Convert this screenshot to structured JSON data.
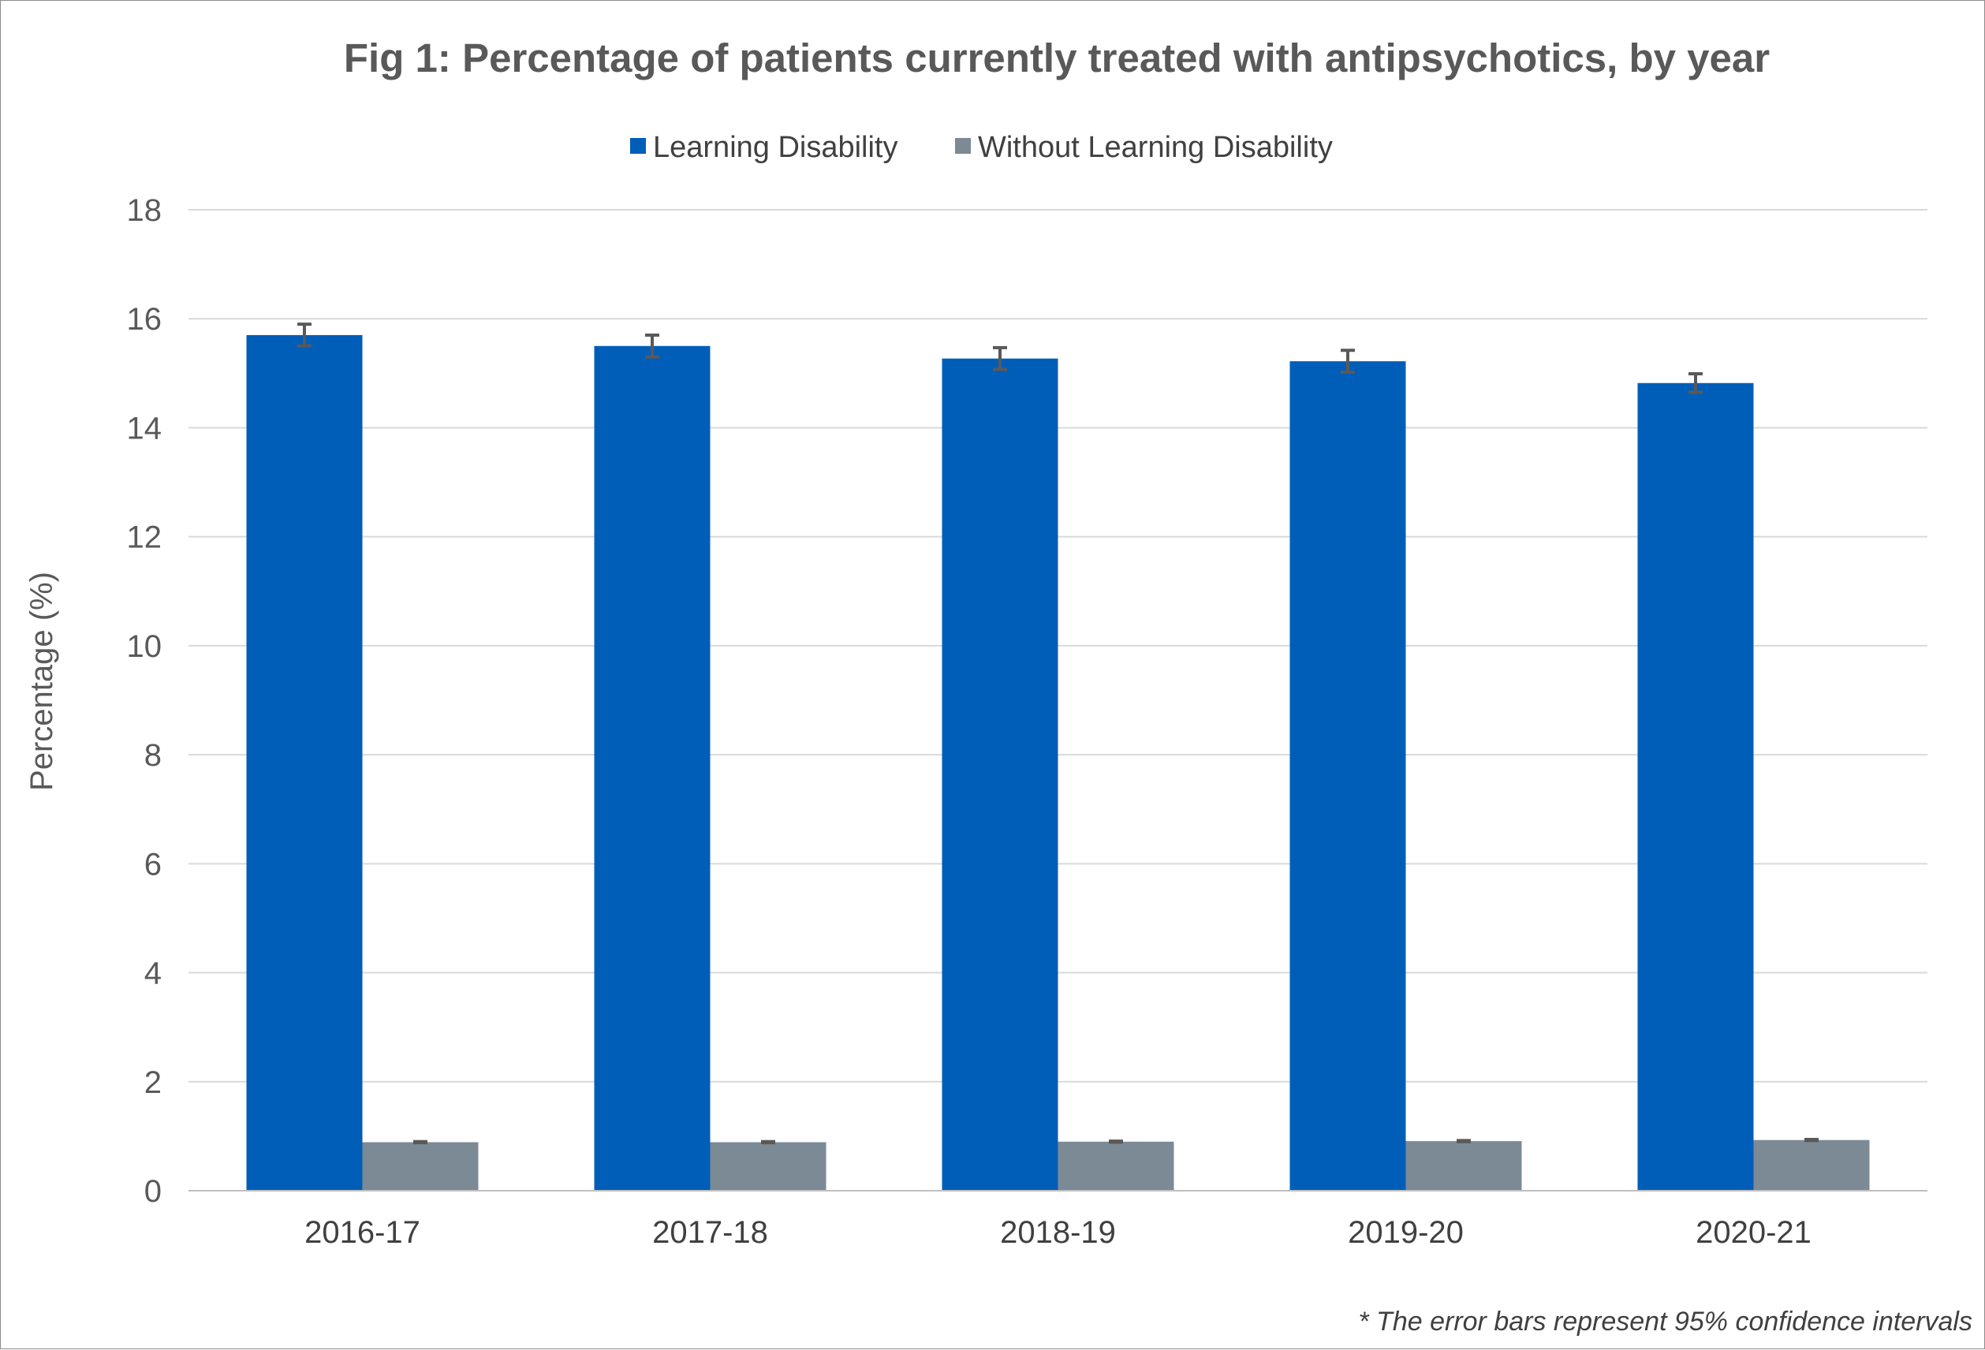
{
  "chart_data": {
    "type": "bar",
    "title": "Fig 1: Percentage of patients currently treated with antipsychotics, by year",
    "xlabel": "",
    "ylabel": "Percentage (%)",
    "ylim": [
      0,
      18
    ],
    "yticks": [
      0,
      2,
      4,
      6,
      8,
      10,
      12,
      14,
      16,
      18
    ],
    "grid": true,
    "legend_position": "top",
    "categories": [
      "2016-17",
      "2017-18",
      "2018-19",
      "2019-20",
      "2020-21"
    ],
    "series": [
      {
        "name": "Learning Disability",
        "color": "#005eb8",
        "values": [
          15.7,
          15.5,
          15.27,
          15.22,
          14.82
        ],
        "ci_low": [
          15.5,
          15.3,
          15.07,
          15.02,
          14.65
        ],
        "ci_high": [
          15.9,
          15.7,
          15.47,
          15.42,
          14.99
        ]
      },
      {
        "name": "Without Learning Disability",
        "color": "#7c8a96",
        "values": [
          0.89,
          0.89,
          0.9,
          0.91,
          0.93
        ],
        "ci_low": [
          0.88,
          0.88,
          0.89,
          0.9,
          0.92
        ],
        "ci_high": [
          0.9,
          0.9,
          0.91,
          0.92,
          0.94
        ]
      }
    ],
    "footnote": "* The error bars represent 95% confidence intervals"
  }
}
